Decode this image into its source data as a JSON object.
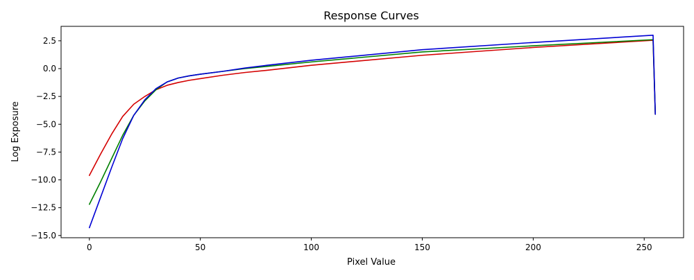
{
  "chart_data": {
    "type": "line",
    "title": "Response Curves",
    "xlabel": "Pixel Value",
    "ylabel": "Log Exposure",
    "xlim": [
      -12.75,
      267.75
    ],
    "ylim": [
      -15.2,
      3.8
    ],
    "xticks": [
      0,
      50,
      100,
      150,
      200,
      250
    ],
    "yticks": [
      2.5,
      0.0,
      -2.5,
      -5.0,
      -7.5,
      -10.0,
      -12.5,
      -15.0
    ],
    "xtick_labels": [
      "0",
      "50",
      "100",
      "150",
      "200",
      "250"
    ],
    "ytick_labels": [
      "2.5",
      "0.0",
      "−2.5",
      "−5.0",
      "−7.5",
      "−10.0",
      "−12.5",
      "−15.0"
    ],
    "grid": false,
    "series": [
      {
        "color": "#d40000",
        "x": [
          0,
          5,
          10,
          15,
          20,
          25,
          30,
          35,
          40,
          45,
          50,
          60,
          70,
          80,
          100,
          150,
          200,
          254,
          255
        ],
        "y": [
          -9.6,
          -7.7,
          -5.9,
          -4.3,
          -3.2,
          -2.5,
          -1.9,
          -1.5,
          -1.25,
          -1.05,
          -0.9,
          -0.6,
          -0.35,
          -0.15,
          0.3,
          1.2,
          1.9,
          2.55,
          -4.1
        ]
      },
      {
        "color": "#008000",
        "x": [
          0,
          5,
          10,
          15,
          20,
          25,
          30,
          35,
          40,
          45,
          50,
          60,
          70,
          80,
          100,
          150,
          200,
          254,
          255
        ],
        "y": [
          -12.2,
          -10.2,
          -8.1,
          -6.0,
          -4.2,
          -2.9,
          -1.9,
          -1.2,
          -0.85,
          -0.65,
          -0.5,
          -0.25,
          0.0,
          0.2,
          0.6,
          1.5,
          2.05,
          2.6,
          -4.1
        ]
      },
      {
        "color": "#0000d4",
        "x": [
          0,
          5,
          10,
          15,
          20,
          25,
          30,
          35,
          40,
          45,
          50,
          60,
          70,
          80,
          100,
          150,
          200,
          254,
          255
        ],
        "y": [
          -14.3,
          -11.6,
          -8.9,
          -6.3,
          -4.2,
          -2.8,
          -1.8,
          -1.2,
          -0.85,
          -0.65,
          -0.5,
          -0.25,
          0.05,
          0.3,
          0.75,
          1.7,
          2.35,
          3.0,
          -4.1
        ]
      }
    ]
  }
}
